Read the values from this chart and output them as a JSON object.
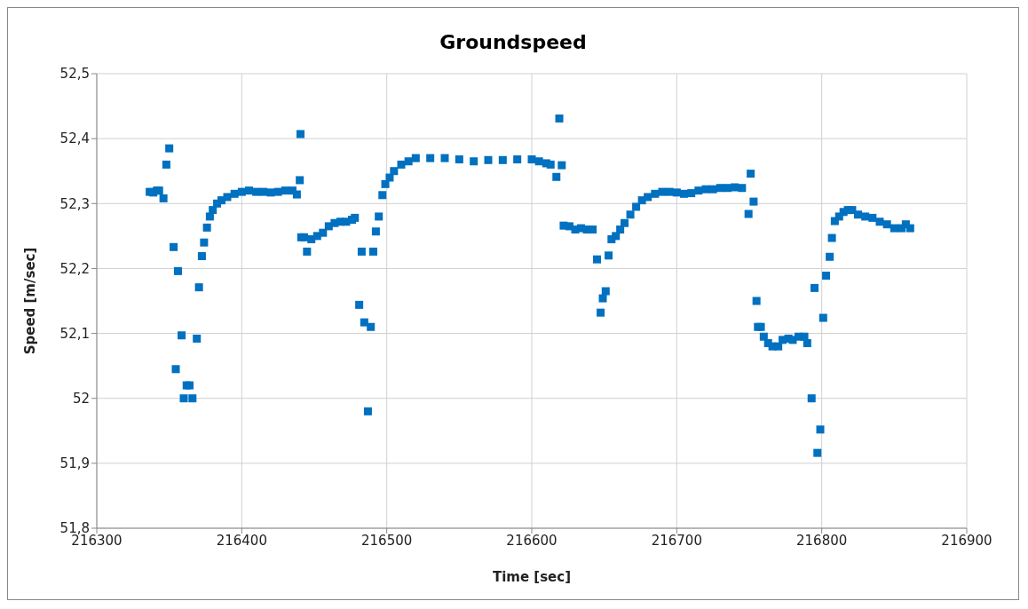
{
  "chart_data": {
    "type": "scatter",
    "title": "Groundspeed",
    "xlabel": "Time [sec]",
    "ylabel": "Speed [m/sec]",
    "marker": "square",
    "grid": true,
    "legend": false,
    "xlim": [
      216300,
      216900
    ],
    "xticks": [
      216300,
      216400,
      216500,
      216600,
      216700,
      216800,
      216900
    ],
    "ylim": [
      51.8,
      52.5
    ],
    "yticks": [
      {
        "value": 51.8,
        "label": "51,8"
      },
      {
        "value": 51.9,
        "label": "51,9"
      },
      {
        "value": 52,
        "label": "52"
      },
      {
        "value": 52.1,
        "label": "52,1"
      },
      {
        "value": 52.2,
        "label": "52,2"
      },
      {
        "value": 52.3,
        "label": "52,3"
      },
      {
        "value": 52.4,
        "label": "52,4"
      },
      {
        "value": 52.5,
        "label": "52,5"
      }
    ],
    "series": [
      {
        "color": "#0070c0",
        "x": [
          216336.5,
          216339,
          216341.5,
          216343,
          216346,
          216348,
          216350,
          216353,
          216354.5,
          216356,
          216358.5,
          216360,
          216362,
          216364,
          216366,
          216369,
          216370.5,
          216372.5,
          216374,
          216376,
          216378,
          216380,
          216383,
          216386,
          216390,
          216395,
          216400,
          216405,
          216410,
          216415,
          216420,
          216425,
          216430,
          216435,
          216438,
          216440,
          216440.5,
          216441,
          216443,
          216445,
          216448,
          216452,
          216456,
          216460,
          216464,
          216468,
          216472,
          216476,
          216478,
          216481,
          216482.7,
          216484.5,
          216487,
          216489,
          216490.7,
          216492.5,
          216494.5,
          216497,
          216499,
          216502,
          216505,
          216510,
          216515,
          216520,
          216530,
          216540,
          216550,
          216560,
          216570,
          216580,
          216590,
          216600,
          216605,
          216610,
          216613,
          216617,
          216619,
          216620.7,
          216622,
          216626,
          216630,
          216634,
          216638,
          216642,
          216645,
          216647.5,
          216649,
          216651,
          216653,
          216655,
          216658,
          216661,
          216664,
          216668,
          216672,
          216676,
          216680,
          216685,
          216690,
          216695,
          216700,
          216705,
          216710,
          216715,
          216720,
          216725,
          216730,
          216735,
          216740,
          216745,
          216749.5,
          216751,
          216753,
          216755,
          216756,
          216758,
          216760,
          216763,
          216766,
          216770,
          216773,
          216777,
          216780,
          216784,
          216788,
          216790,
          216793,
          216795,
          216797,
          216799,
          216801,
          216803,
          216805.5,
          216807,
          216809,
          216812,
          216815,
          216818,
          216821,
          216825,
          216830,
          216835,
          216840,
          216845,
          216850,
          216855,
          216858,
          216861
        ],
        "values": [
          52.318,
          52.317,
          52.32,
          52.32,
          52.308,
          52.36,
          52.385,
          52.233,
          52.045,
          52.196,
          52.097,
          52.0,
          52.02,
          52.02,
          52.0,
          52.092,
          52.171,
          52.219,
          52.24,
          52.263,
          52.28,
          52.29,
          52.3,
          52.305,
          52.31,
          52.315,
          52.318,
          52.32,
          52.318,
          52.318,
          52.317,
          52.318,
          52.32,
          52.32,
          52.314,
          52.336,
          52.407,
          52.248,
          52.248,
          52.226,
          52.245,
          52.25,
          52.255,
          52.265,
          52.27,
          52.272,
          52.272,
          52.275,
          52.278,
          52.144,
          52.226,
          52.117,
          51.98,
          52.11,
          52.226,
          52.257,
          52.28,
          52.313,
          52.33,
          52.34,
          52.35,
          52.36,
          52.365,
          52.37,
          52.37,
          52.37,
          52.368,
          52.365,
          52.367,
          52.367,
          52.368,
          52.368,
          52.365,
          52.362,
          52.36,
          52.341,
          52.431,
          52.359,
          52.266,
          52.265,
          52.26,
          52.262,
          52.26,
          52.26,
          52.214,
          52.132,
          52.154,
          52.165,
          52.22,
          52.245,
          52.25,
          52.26,
          52.27,
          52.283,
          52.295,
          52.305,
          52.31,
          52.315,
          52.318,
          52.318,
          52.317,
          52.315,
          52.316,
          52.32,
          52.322,
          52.322,
          52.324,
          52.324,
          52.325,
          52.324,
          52.284,
          52.346,
          52.303,
          52.15,
          52.11,
          52.11,
          52.095,
          52.085,
          52.08,
          52.08,
          52.09,
          52.092,
          52.09,
          52.095,
          52.095,
          52.085,
          52.0,
          52.17,
          51.916,
          51.952,
          52.124,
          52.189,
          52.218,
          52.247,
          52.273,
          52.28,
          52.287,
          52.29,
          52.29,
          52.283,
          52.28,
          52.278,
          52.272,
          52.268,
          52.262,
          52.262,
          52.268,
          52.262
        ]
      }
    ]
  }
}
